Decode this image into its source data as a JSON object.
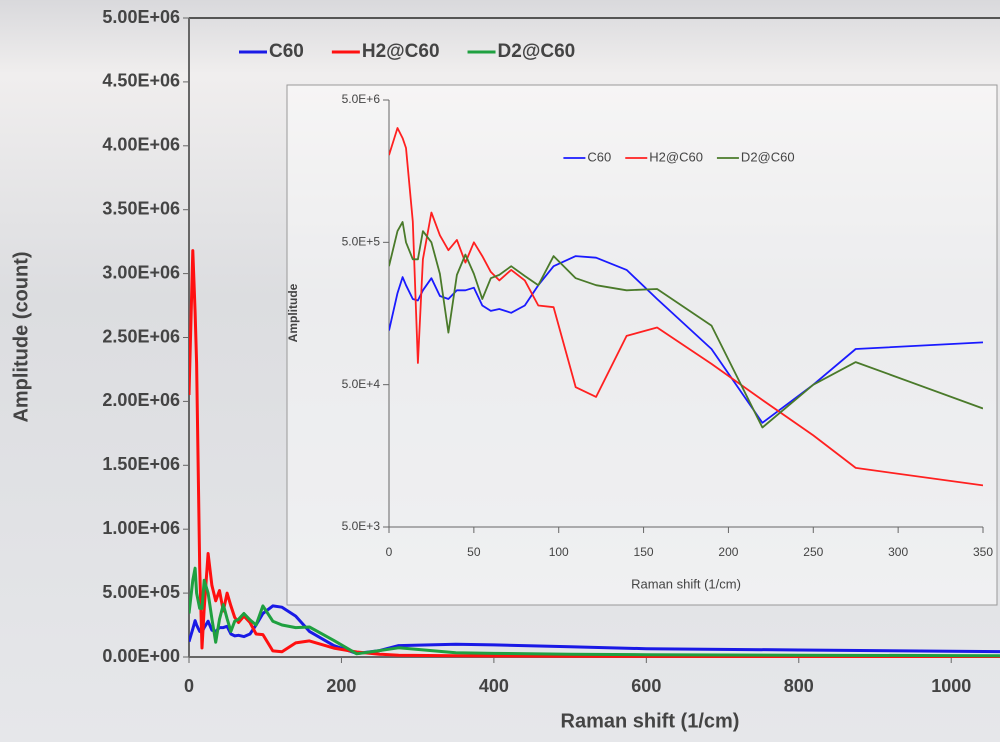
{
  "chart_data": [
    {
      "type": "line",
      "ylabel": "Amplitude (count)",
      "xlabel": "Raman shift (1/cm)",
      "legend": "upper left",
      "xlim": [
        0,
        1064
      ],
      "xticks": [
        0,
        200,
        400,
        600,
        800,
        1000
      ],
      "ylim": [
        0,
        5000000
      ],
      "yticks": [
        {
          "value": 0,
          "label": "0.00E+00"
        },
        {
          "value": 500000,
          "label": "5.00E+05"
        },
        {
          "value": 1000000,
          "label": "1.00E+06"
        },
        {
          "value": 1500000,
          "label": "1.50E+06"
        },
        {
          "value": 2000000,
          "label": "2.00E+06"
        },
        {
          "value": 2500000,
          "label": "2.50E+06"
        },
        {
          "value": 3000000,
          "label": "3.00E+06"
        },
        {
          "value": 3500000,
          "label": "3.50E+06"
        },
        {
          "value": 4000000,
          "label": "4.00E+06"
        },
        {
          "value": 4500000,
          "label": "4.50E+06"
        },
        {
          "value": 5000000,
          "label": "5.00E+06"
        }
      ],
      "x": [
        0,
        5,
        8,
        10,
        14,
        17,
        20,
        25,
        30,
        35,
        40,
        45,
        50,
        55,
        60,
        65,
        72,
        80,
        88,
        97,
        110,
        122,
        140,
        158,
        190,
        220,
        250,
        275,
        350,
        400,
        500,
        600,
        800,
        1000,
        1064
      ],
      "series": [
        {
          "name": "C60",
          "color": "#1a1ae6",
          "values": [
            120000,
            220000,
            285000,
            250000,
            200000,
            195000,
            230000,
            280000,
            210000,
            200000,
            230000,
            230000,
            240000,
            180000,
            165000,
            170000,
            160000,
            180000,
            250000,
            340000,
            400000,
            390000,
            320000,
            200000,
            89000,
            27000,
            50000,
            89000,
            99000,
            95000,
            80000,
            65000,
            55000,
            45000,
            42000
          ]
        },
        {
          "name": "H2@C60",
          "color": "#ff1010",
          "values": [
            2050000,
            3180000,
            2700000,
            2300000,
            700000,
            71000,
            380000,
            810000,
            560000,
            440000,
            520000,
            360000,
            500000,
            400000,
            310000,
            270000,
            320000,
            270000,
            180000,
            175000,
            48000,
            41000,
            110000,
            126000,
            70000,
            39000,
            22000,
            13000,
            9800,
            8000,
            6000,
            5000,
            4000,
            3200,
            3000
          ]
        },
        {
          "name": "D2@C60",
          "color": "#1fa040",
          "values": [
            340000,
            600000,
            695000,
            500000,
            380000,
            380000,
            600000,
            500000,
            300000,
            116000,
            295000,
            410000,
            300000,
            200000,
            280000,
            295000,
            340000,
            290000,
            250000,
            400000,
            280000,
            250000,
            230000,
            235000,
            130000,
            25000,
            50000,
            72000,
            34000,
            28000,
            22000,
            18000,
            14000,
            11000,
            10000
          ]
        }
      ]
    },
    {
      "type": "line",
      "ylabel": "Amplitude",
      "xlabel": "Raman shift (1/cm)",
      "legend": "upper center",
      "yscale": "log",
      "xlim": [
        0,
        350
      ],
      "xticks": [
        0,
        50,
        100,
        150,
        200,
        250,
        300,
        350
      ],
      "ylim": [
        5000,
        5000000
      ],
      "yticks": [
        {
          "value": 5000,
          "label": "5.0E+3"
        },
        {
          "value": 50000,
          "label": "5.0E+4"
        },
        {
          "value": 500000,
          "label": "5.0E+5"
        },
        {
          "value": 5000000,
          "label": "5.0E+6"
        }
      ],
      "x": [
        0,
        5,
        8,
        10,
        14,
        17,
        20,
        25,
        30,
        35,
        40,
        45,
        50,
        55,
        60,
        65,
        72,
        80,
        88,
        97,
        110,
        122,
        140,
        158,
        190,
        220,
        250,
        275,
        350
      ],
      "series": [
        {
          "name": "C60",
          "color": "#1a1aff",
          "values": [
            120000,
            220000,
            285000,
            250000,
            200000,
            195000,
            230000,
            280000,
            210000,
            200000,
            230000,
            230000,
            240000,
            180000,
            165000,
            170000,
            160000,
            180000,
            250000,
            340000,
            400000,
            390000,
            320000,
            200000,
            89000,
            27000,
            50000,
            89000,
            99000
          ]
        },
        {
          "name": "H2@C60",
          "color": "#ff2020",
          "values": [
            2050000,
            3180000,
            2700000,
            2300000,
            700000,
            71000,
            380000,
            810000,
            560000,
            440000,
            520000,
            360000,
            500000,
            400000,
            310000,
            270000,
            320000,
            270000,
            180000,
            175000,
            48000,
            41000,
            110000,
            126000,
            70000,
            39000,
            22000,
            13000,
            9800
          ]
        },
        {
          "name": "D2@C60",
          "color": "#4a7a2a",
          "values": [
            340000,
            600000,
            695000,
            500000,
            380000,
            380000,
            600000,
            500000,
            300000,
            116000,
            295000,
            410000,
            300000,
            200000,
            280000,
            295000,
            340000,
            290000,
            250000,
            400000,
            280000,
            250000,
            230000,
            235000,
            130000,
            25000,
            50000,
            72000,
            34000
          ]
        }
      ]
    }
  ]
}
